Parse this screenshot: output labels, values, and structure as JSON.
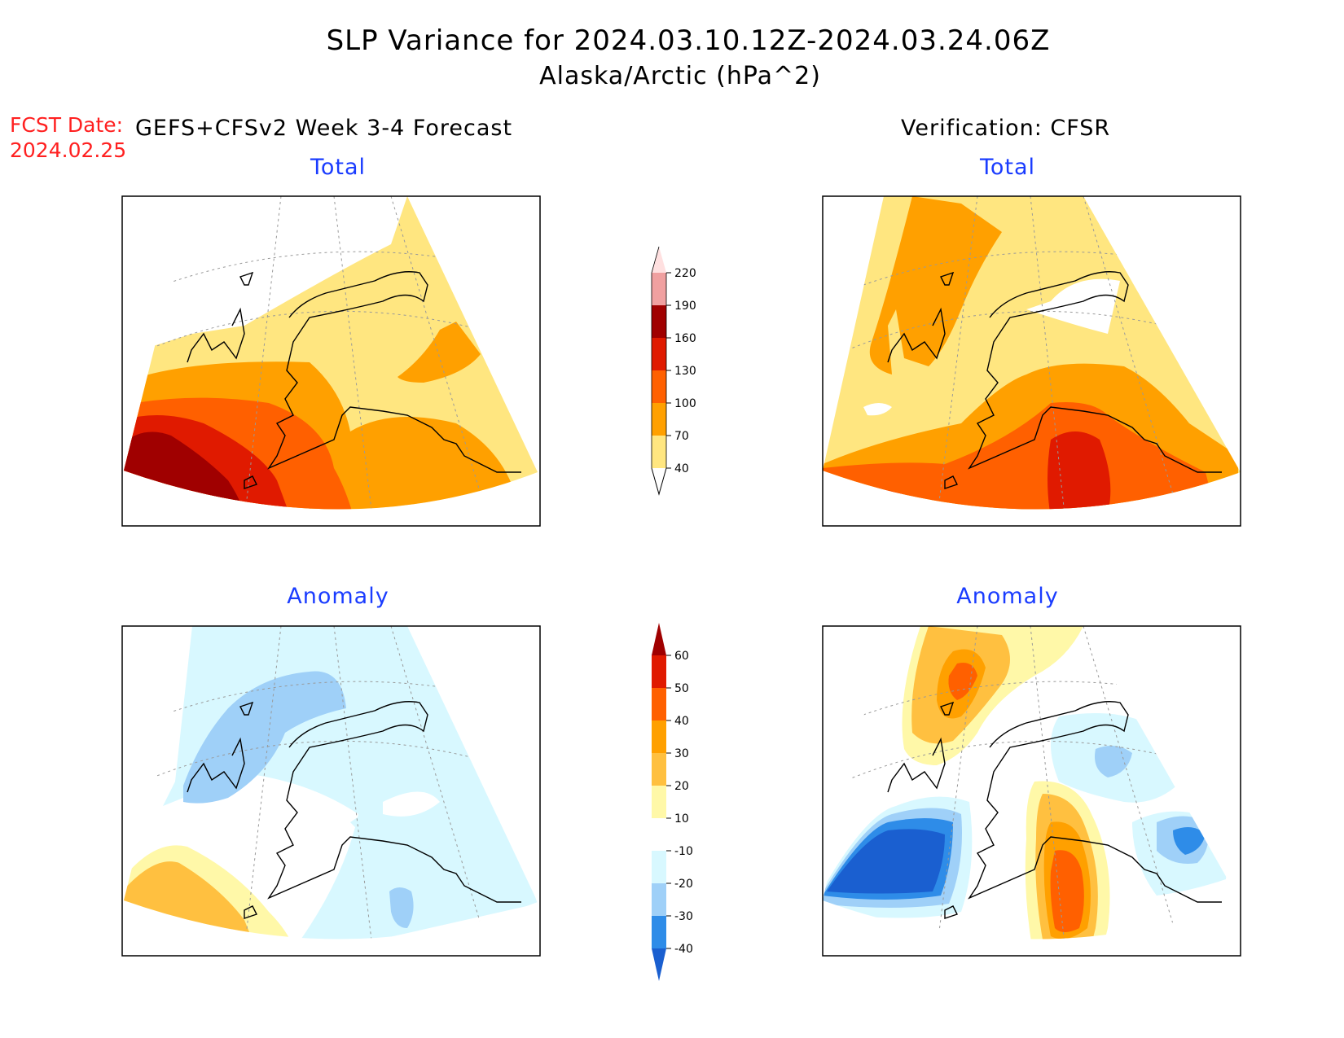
{
  "header": {
    "title": "SLP Variance for 2024.03.10.12Z-2024.03.24.06Z",
    "subtitle": "Alaska/Arctic (hPa^2)",
    "fcst_label_line1": "FCST Date:",
    "fcst_label_line2": "2024.02.25",
    "left_column_title": "GEFS+CFSv2 Week 3-4 Forecast",
    "right_column_title": "Verification: CFSR"
  },
  "panels": {
    "top_left": "Total",
    "top_right": "Total",
    "bottom_left": "Anomaly",
    "bottom_right": "Anomaly"
  },
  "colorbars": {
    "total": {
      "levels": [
        "40",
        "70",
        "100",
        "130",
        "160",
        "190",
        "220"
      ],
      "colors": [
        "#ffe680",
        "#ffa000",
        "#ff6000",
        "#e01a00",
        "#a00000",
        "#f0a0a0",
        "#ffe0e0"
      ],
      "bottom_color": "#ffffff"
    },
    "anomaly": {
      "levels": [
        "-40",
        "-30",
        "-20",
        "-10",
        "10",
        "20",
        "30",
        "40",
        "50",
        "60"
      ],
      "colors": [
        "#1a5fd0",
        "#2e8ce8",
        "#9fd0f8",
        "#d8f8ff",
        "#ffffff",
        "#fff8a8",
        "#ffc040",
        "#ffa000",
        "#ff6000",
        "#e01a00",
        "#a00000"
      ]
    }
  },
  "fill_colors": {
    "total_40_70": "#ffe680",
    "total_70_100": "#ffa000",
    "total_100_130": "#ff6000",
    "total_130_160": "#e01a00",
    "total_160_190": "#a00000",
    "total_190_220": "#f0a0a0",
    "anom_neg10": "#d8f8ff",
    "anom_neg20": "#9fd0f8",
    "anom_neg30": "#2e8ce8",
    "anom_neg40": "#1a5fd0",
    "anom_pos10": "#fff8a8",
    "anom_pos20": "#ffc040",
    "anom_pos30": "#ffa000",
    "anom_pos40": "#ff6000",
    "anom_pos50": "#e01a00"
  }
}
